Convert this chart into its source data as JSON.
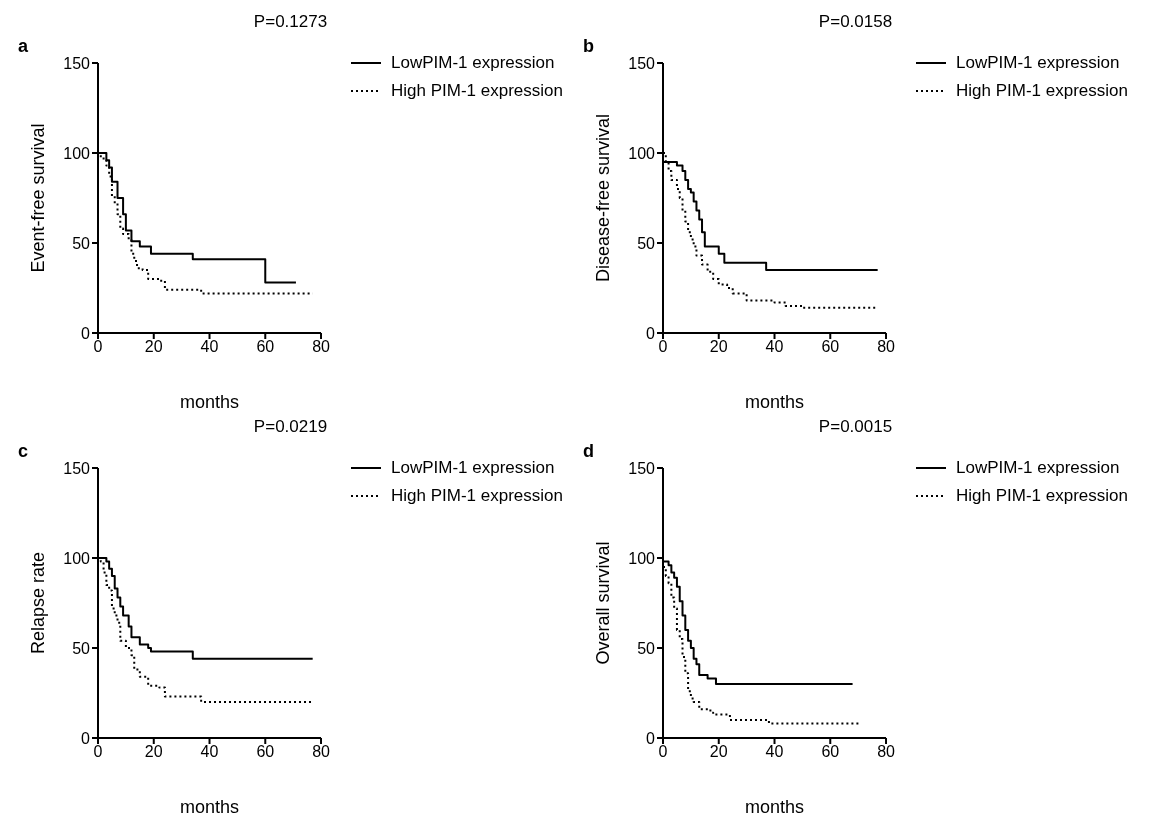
{
  "chart_data": [
    {
      "type": "step",
      "title": "P=0.1273",
      "annotations": [
        "a"
      ],
      "xlabel": "months",
      "ylabel": "Event-free survival",
      "xlim": [
        0,
        80
      ],
      "xticks": [
        0,
        20,
        40,
        60,
        80
      ],
      "ylim": [
        0,
        150
      ],
      "yticks": [
        0,
        50,
        100,
        150
      ],
      "legend": "top right",
      "series": [
        {
          "name": "LowPIM-1 expression",
          "color": "#000000",
          "line_style": "solid",
          "x": [
            0,
            3,
            4,
            5,
            7,
            9,
            10,
            12,
            15,
            19,
            34,
            60,
            71
          ],
          "values": [
            100,
            96,
            92,
            84,
            75,
            66,
            57,
            51,
            48,
            44,
            41,
            28,
            28
          ]
        },
        {
          "name": "High PIM-1 expression",
          "color": "#000000",
          "line_style": "dotted",
          "x": [
            0,
            1,
            3,
            4,
            5,
            6,
            7,
            8,
            9,
            11,
            12,
            13,
            14,
            16,
            18,
            22,
            24,
            37,
            77
          ],
          "values": [
            100,
            97,
            93,
            87,
            76,
            72,
            66,
            58,
            55,
            52,
            44,
            40,
            36,
            35,
            30,
            29,
            24,
            22,
            22
          ]
        }
      ]
    },
    {
      "type": "step",
      "title": "P=0.0158",
      "annotations": [
        "b"
      ],
      "xlabel": "months",
      "ylabel": "Disease-free survival",
      "xlim": [
        0,
        80
      ],
      "xticks": [
        0,
        20,
        40,
        60,
        80
      ],
      "ylim": [
        0,
        150
      ],
      "yticks": [
        0,
        50,
        100,
        150
      ],
      "legend": "top right",
      "series": [
        {
          "name": "LowPIM-1 expression",
          "color": "#000000",
          "line_style": "solid",
          "x": [
            0,
            5,
            7,
            8,
            9,
            10,
            11,
            12,
            13,
            14,
            15,
            20,
            22,
            37,
            77
          ],
          "values": [
            95,
            93,
            90,
            85,
            80,
            78,
            73,
            68,
            63,
            56,
            48,
            44,
            39,
            35,
            35
          ]
        },
        {
          "name": "High PIM-1 expression",
          "color": "#000000",
          "line_style": "dotted",
          "x": [
            0,
            1,
            2,
            3,
            5,
            6,
            7,
            8,
            9,
            10,
            11,
            12,
            14,
            16,
            18,
            20,
            23,
            25,
            30,
            40,
            44,
            50,
            77
          ],
          "values": [
            100,
            95,
            90,
            85,
            80,
            75,
            68,
            62,
            56,
            52,
            48,
            43,
            38,
            34,
            30,
            27,
            25,
            22,
            18,
            17,
            15,
            14,
            14
          ]
        }
      ]
    },
    {
      "type": "step",
      "title": "P=0.0219",
      "annotations": [
        "c"
      ],
      "xlabel": "months",
      "ylabel": "Relapse rate",
      "xlim": [
        0,
        80
      ],
      "xticks": [
        0,
        20,
        40,
        60,
        80
      ],
      "ylim": [
        0,
        150
      ],
      "yticks": [
        0,
        50,
        100,
        150
      ],
      "legend": "top right",
      "series": [
        {
          "name": "LowPIM-1 expression",
          "color": "#000000",
          "line_style": "solid",
          "x": [
            0,
            3,
            4,
            5,
            6,
            7,
            8,
            9,
            11,
            12,
            15,
            18,
            19,
            34,
            77
          ],
          "values": [
            100,
            98,
            94,
            90,
            83,
            78,
            73,
            68,
            62,
            56,
            52,
            50,
            48,
            44,
            44
          ]
        },
        {
          "name": "High PIM-1 expression",
          "color": "#000000",
          "line_style": "dotted",
          "x": [
            0,
            1,
            2,
            3,
            4,
            5,
            6,
            7,
            8,
            10,
            12,
            13,
            15,
            18,
            22,
            24,
            37,
            77
          ],
          "values": [
            100,
            98,
            92,
            85,
            82,
            72,
            68,
            64,
            54,
            50,
            46,
            38,
            34,
            29,
            28,
            23,
            20,
            20
          ]
        }
      ]
    },
    {
      "type": "step",
      "title": "P=0.0015",
      "annotations": [
        "d"
      ],
      "xlabel": "months",
      "ylabel": "Overall survival",
      "xlim": [
        0,
        80
      ],
      "xticks": [
        0,
        20,
        40,
        60,
        80
      ],
      "ylim": [
        0,
        150
      ],
      "yticks": [
        0,
        50,
        100,
        150
      ],
      "legend": "top right",
      "series": [
        {
          "name": "LowPIM-1 expression",
          "color": "#000000",
          "line_style": "solid",
          "x": [
            0,
            2,
            3,
            4,
            5,
            6,
            7,
            8,
            9,
            10,
            11,
            12,
            13,
            16,
            19,
            68
          ],
          "values": [
            98,
            96,
            92,
            89,
            84,
            76,
            68,
            60,
            54,
            50,
            44,
            41,
            35,
            33,
            30,
            30
          ]
        },
        {
          "name": "High PIM-1 expression",
          "color": "#000000",
          "line_style": "dotted",
          "x": [
            0,
            1,
            2,
            3,
            4,
            5,
            6,
            7,
            8,
            9,
            10,
            11,
            13,
            17,
            18,
            24,
            38,
            71
          ],
          "values": [
            95,
            90,
            86,
            78,
            72,
            60,
            55,
            45,
            36,
            26,
            22,
            20,
            16,
            14,
            13,
            10,
            8,
            8
          ]
        }
      ]
    }
  ]
}
